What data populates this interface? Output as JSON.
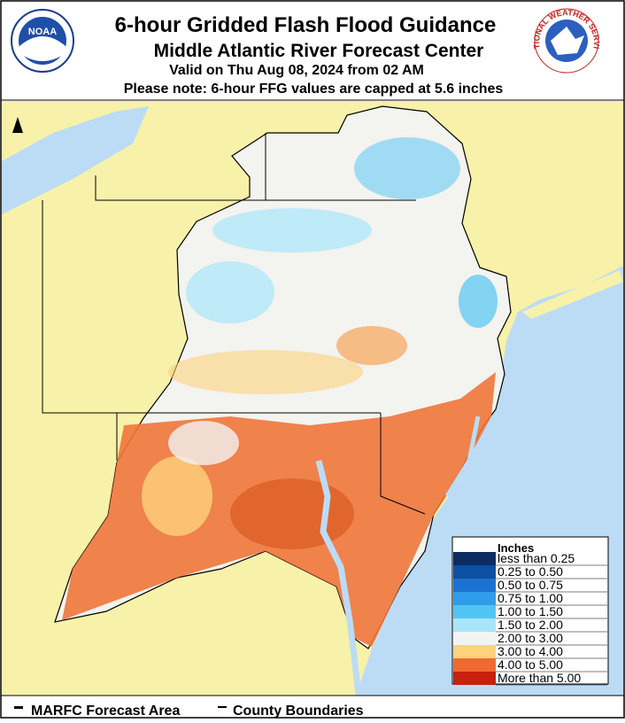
{
  "header": {
    "title": "6-hour Gridded Flash Flood Guidance",
    "subtitle": "Middle Atlantic River Forecast Center",
    "valid": "Valid on Thu Aug 08, 2024 from 02 AM",
    "note": "Please note: 6-hour FFG values are capped at 5.6 inches"
  },
  "logos": {
    "left": "NOAA",
    "right": "NATIONAL WEATHER SERVICE"
  },
  "legend": {
    "title": "Inches",
    "items": [
      {
        "label": "less than 0.25",
        "color": "#0b2d63"
      },
      {
        "label": "0.25 to 0.50",
        "color": "#0d4fa0"
      },
      {
        "label": "0.50 to 0.75",
        "color": "#1b72d2"
      },
      {
        "label": "0.75 to 1.00",
        "color": "#2f9ce9"
      },
      {
        "label": "1.00 to 1.50",
        "color": "#52c4f4"
      },
      {
        "label": "1.50 to 2.00",
        "color": "#a8e5fb"
      },
      {
        "label": "2.00 to 3.00",
        "color": "#f3f3f3"
      },
      {
        "label": "3.00 to 4.00",
        "color": "#fdd27c"
      },
      {
        "label": "4.00 to 5.00",
        "color": "#f06a30"
      },
      {
        "label": "More than 5.00",
        "color": "#c7200c"
      }
    ]
  },
  "footer": {
    "items": [
      "MARFC Forecast Area",
      "County Boundaries"
    ]
  }
}
